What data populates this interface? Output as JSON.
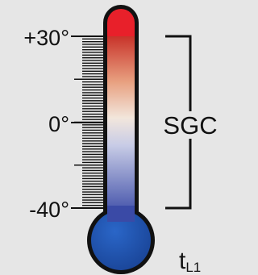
{
  "labels": {
    "top": "+30°",
    "middle": "0°",
    "bottom": "-40°"
  },
  "bracket_label": "SGC",
  "variable": {
    "symbol": "t",
    "subscript": "L1"
  }
}
